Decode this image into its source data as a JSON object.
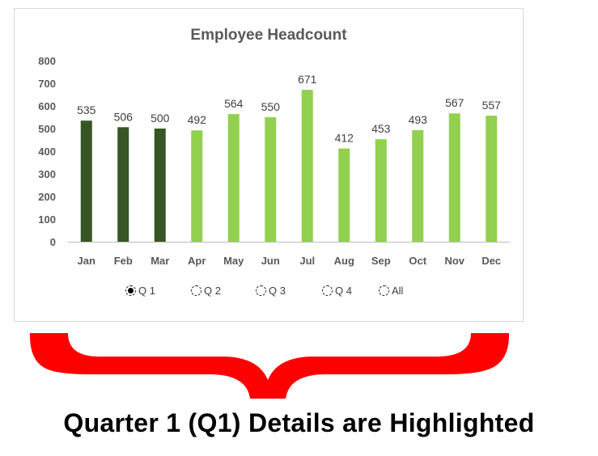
{
  "chart_data": {
    "type": "bar",
    "title": "Employee Headcount",
    "categories": [
      "Jan",
      "Feb",
      "Mar",
      "Apr",
      "May",
      "Jun",
      "Jul",
      "Aug",
      "Sep",
      "Oct",
      "Nov",
      "Dec"
    ],
    "values": [
      535,
      506,
      500,
      492,
      564,
      550,
      671,
      412,
      453,
      493,
      567,
      557
    ],
    "highlighted": [
      "Jan",
      "Feb",
      "Mar"
    ],
    "ylim": [
      0,
      800
    ],
    "yticks": [
      0,
      100,
      200,
      300,
      400,
      500,
      600,
      700,
      800
    ],
    "grid": false,
    "colors": {
      "highlight": "#375623",
      "normal": "#92D050"
    }
  },
  "options": [
    {
      "label": "Q 1",
      "selected": true
    },
    {
      "label": "Q 2",
      "selected": false
    },
    {
      "label": "Q 3",
      "selected": false
    },
    {
      "label": "Q 4",
      "selected": false
    },
    {
      "label": "All",
      "selected": false
    }
  ],
  "caption": "Quarter 1 (Q1) Details are Highlighted",
  "brace_color": "#ff0000"
}
